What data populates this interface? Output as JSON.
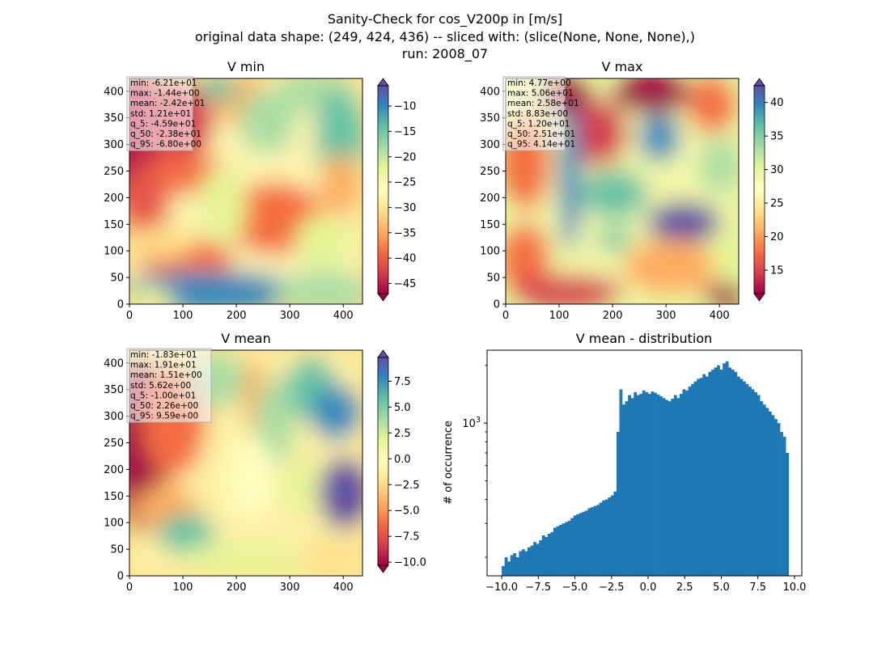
{
  "figure": {
    "title_lines": [
      "Sanity-Check for cos_V200p in [m/s]",
      "original data shape: (249, 424, 436) -- sliced with: (slice(None, None, None),)",
      "run: 2008_07"
    ]
  },
  "colormap": "Spectral",
  "chart_data": [
    {
      "type": "heatmap",
      "title": "V min",
      "xlim": [
        0,
        436
      ],
      "ylim": [
        0,
        424
      ],
      "x_ticks": [
        0,
        100,
        200,
        300,
        400
      ],
      "y_ticks": [
        0,
        50,
        100,
        150,
        200,
        250,
        300,
        350,
        400
      ],
      "colorbar": {
        "ticks": [
          -45,
          -40,
          -35,
          -30,
          -25,
          -20,
          -15,
          -10
        ],
        "range": [
          -47,
          -6
        ],
        "extend": "both"
      },
      "stats": [
        "min: -6.21e+01",
        "max: -1.44e+00",
        "mean: -2.42e+01",
        "std: 1.21e+01",
        "q_5: -4.59e+01",
        "q_50: -2.38e+01",
        "q_95: -6.80e+00"
      ]
    },
    {
      "type": "heatmap",
      "title": "V max",
      "xlim": [
        0,
        436
      ],
      "ylim": [
        0,
        424
      ],
      "x_ticks": [
        0,
        100,
        200,
        300,
        400
      ],
      "y_ticks": [
        0,
        50,
        100,
        150,
        200,
        250,
        300,
        350,
        400
      ],
      "colorbar": {
        "ticks": [
          15,
          20,
          25,
          30,
          35,
          40
        ],
        "range": [
          11.5,
          42.5
        ],
        "extend": "both"
      },
      "stats": [
        "min: 4.77e+00",
        "max: 5.06e+01",
        "mean: 2.58e+01",
        "std: 8.83e+00",
        "q_5: 1.20e+01",
        "q_50: 2.51e+01",
        "q_95: 4.14e+01"
      ]
    },
    {
      "type": "heatmap",
      "title": "V mean",
      "xlim": [
        0,
        436
      ],
      "ylim": [
        0,
        424
      ],
      "x_ticks": [
        0,
        100,
        200,
        300,
        400
      ],
      "y_ticks": [
        0,
        50,
        100,
        150,
        200,
        250,
        300,
        350,
        400
      ],
      "colorbar": {
        "ticks": [
          -10.0,
          -7.5,
          -5.0,
          -2.5,
          0.0,
          2.5,
          5.0,
          7.5
        ],
        "tick_labels": [
          "−10.0",
          "−7.5",
          "−5.0",
          "−2.5",
          "0.0",
          "2.5",
          "5.0",
          "7.5"
        ],
        "range": [
          -10.3,
          9.8
        ],
        "extend": "both"
      },
      "stats": [
        "min: -1.83e+01",
        "max: 1.91e+01",
        "mean: 1.51e+00",
        "std: 5.62e+00",
        "q_5: -1.00e+01",
        "q_50: 2.26e+00",
        "q_95: 9.59e+00"
      ]
    },
    {
      "type": "bar",
      "title": "V mean - distribution",
      "ylabel": "# of occurrence",
      "yscale": "log",
      "xlim": [
        -11.0,
        10.5
      ],
      "ylim": [
        160,
        2400
      ],
      "x_ticks": [
        -10.0,
        -7.5,
        -5.0,
        -2.5,
        0.0,
        2.5,
        5.0,
        7.5,
        10.0
      ],
      "x_tick_labels": [
        "−10.0",
        "−7.5",
        "−5.0",
        "−2.5",
        "0.0",
        "2.5",
        "5.0",
        "7.5",
        "10.0"
      ],
      "y_major_ticks": [
        1000
      ],
      "y_major_label_base": "10",
      "y_major_label_exp": "3",
      "y_minor_ticks": [
        200,
        300,
        400,
        500,
        600,
        700,
        800,
        900,
        2000
      ],
      "bin_range": [
        -10.0,
        9.6
      ],
      "counts": [
        180,
        200,
        190,
        205,
        210,
        200,
        215,
        220,
        215,
        225,
        230,
        240,
        235,
        245,
        260,
        255,
        265,
        270,
        285,
        290,
        295,
        300,
        305,
        310,
        320,
        330,
        335,
        340,
        345,
        350,
        360,
        365,
        370,
        375,
        385,
        395,
        400,
        410,
        420,
        440,
        900,
        1500,
        1250,
        1300,
        1400,
        1350,
        1450,
        1400,
        1420,
        1480,
        1450,
        1420,
        1460,
        1440,
        1410,
        1380,
        1350,
        1320,
        1300,
        1340,
        1400,
        1350,
        1420,
        1500,
        1480,
        1550,
        1600,
        1650,
        1700,
        1720,
        1800,
        1750,
        1850,
        1900,
        1950,
        2000,
        1900,
        2050,
        2100,
        1950,
        1900,
        1850,
        1750,
        1700,
        1650,
        1600,
        1550,
        1500,
        1450,
        1400,
        1300,
        1250,
        1200,
        1150,
        1100,
        1050,
        1000,
        900,
        850,
        700
      ]
    }
  ]
}
